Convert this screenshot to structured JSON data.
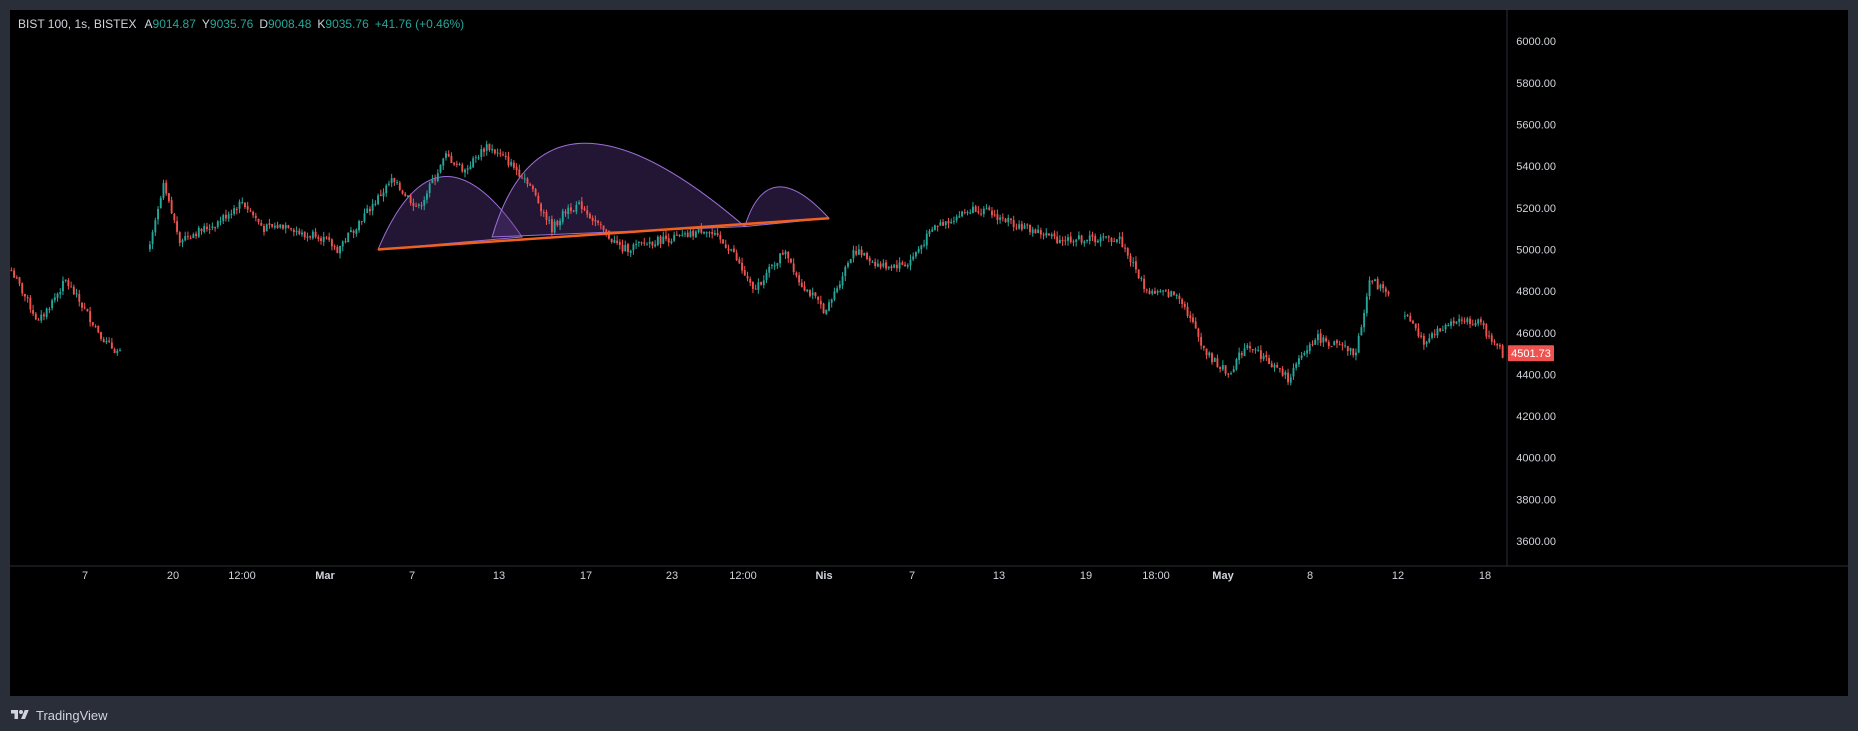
{
  "legend": {
    "symbol": "BIST 100, 1s, BISTEX",
    "open_label": "A",
    "open": "9014.87",
    "high_label": "Y",
    "high": "9035.76",
    "low_label": "D",
    "low": "9008.48",
    "close_label": "K",
    "close": "9035.76",
    "change": "+41.76 (+0.46%)"
  },
  "footer": {
    "brand": "TradingView",
    "logo_icon": "tradingview-logo-icon"
  },
  "colors": {
    "up": "#26a69a",
    "down": "#ef5350",
    "background": "#000000",
    "frame": "#2a2e39",
    "pattern_fill": "#5b3a8a",
    "neckline": "#f06020"
  },
  "chart_data": {
    "type": "candlestick",
    "price_label": "4501.73",
    "y_ticks": [
      "6000.00",
      "5800.00",
      "5600.00",
      "5400.00",
      "5200.00",
      "5000.00",
      "4800.00",
      "4600.00",
      "4400.00",
      "4200.00",
      "4000.00",
      "3800.00",
      "3600.00"
    ],
    "x_ticks": [
      "7",
      "20",
      "12:00",
      "Mar",
      "7",
      "13",
      "17",
      "23",
      "12:00",
      "Nis",
      "7",
      "13",
      "19",
      "18:00",
      "May",
      "8",
      "12",
      "18"
    ],
    "ylim": [
      3480,
      6150
    ],
    "path_anchors": [
      [
        0,
        4900
      ],
      [
        10,
        4650
      ],
      [
        20,
        4850
      ],
      [
        35,
        4550
      ],
      [
        40,
        4500
      ],
      [
        42,
        null
      ],
      [
        50,
        4950
      ],
      [
        56,
        5300
      ],
      [
        62,
        5050
      ],
      [
        75,
        5120
      ],
      [
        85,
        5230
      ],
      [
        93,
        5100
      ],
      [
        102,
        5120
      ],
      [
        108,
        5060
      ],
      [
        112,
        5080
      ],
      [
        120,
        5000
      ],
      [
        140,
        5330
      ],
      [
        150,
        5200
      ],
      [
        160,
        5450
      ],
      [
        167,
        5380
      ],
      [
        175,
        5500
      ],
      [
        183,
        5420
      ],
      [
        190,
        5330
      ],
      [
        199,
        5100
      ],
      [
        205,
        5200
      ],
      [
        210,
        5210
      ],
      [
        217,
        5100
      ],
      [
        225,
        5000
      ],
      [
        240,
        5050
      ],
      [
        248,
        5060
      ],
      [
        255,
        5100
      ],
      [
        265,
        5000
      ],
      [
        273,
        4800
      ],
      [
        285,
        5000
      ],
      [
        290,
        4850
      ],
      [
        300,
        4700
      ],
      [
        310,
        5000
      ],
      [
        320,
        4920
      ],
      [
        330,
        4930
      ],
      [
        340,
        5110
      ],
      [
        355,
        5200
      ],
      [
        370,
        5120
      ],
      [
        385,
        5050
      ],
      [
        395,
        5050
      ],
      [
        408,
        5050
      ],
      [
        418,
        4800
      ],
      [
        430,
        4780
      ],
      [
        440,
        4500
      ],
      [
        448,
        4400
      ],
      [
        455,
        4550
      ],
      [
        470,
        4380
      ],
      [
        480,
        4580
      ],
      [
        495,
        4500
      ],
      [
        500,
        4850
      ],
      [
        507,
        4800
      ],
      [
        510,
        null
      ],
      [
        512,
        4700
      ],
      [
        520,
        4550
      ],
      [
        530,
        4650
      ],
      [
        540,
        4650
      ],
      [
        549,
        4500
      ]
    ],
    "pattern": {
      "type": "head-and-shoulders",
      "neckline": [
        [
          135,
          5000
        ],
        [
          301,
          5150
        ]
      ],
      "shoulders_and_head": [
        [
          135,
          5000,
          159,
          5350,
          188,
          5060
        ],
        [
          177,
          5060,
          210,
          5510,
          270,
          5110
        ],
        [
          270,
          5110,
          282,
          5300,
          301,
          5150
        ]
      ]
    }
  }
}
